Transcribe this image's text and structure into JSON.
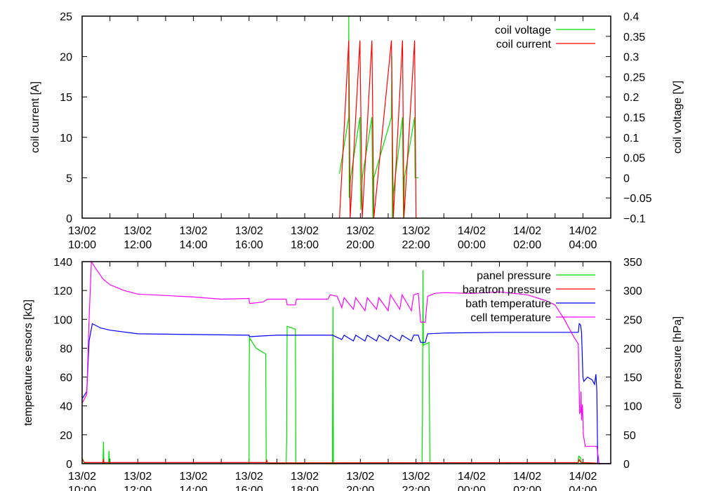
{
  "chart_data": [
    {
      "type": "line",
      "xlim": [
        "13/02 10:00",
        "14/02 05:00"
      ],
      "x_tick_labels": [
        [
          "13/02",
          "10:00"
        ],
        [
          "13/02",
          "12:00"
        ],
        [
          "13/02",
          "14:00"
        ],
        [
          "13/02",
          "16:00"
        ],
        [
          "13/02",
          "18:00"
        ],
        [
          "13/02",
          "20:00"
        ],
        [
          "13/02",
          "22:00"
        ],
        [
          "14/02",
          "00:00"
        ],
        [
          "14/02",
          "02:00"
        ],
        [
          "14/02",
          "04:00"
        ]
      ],
      "ylabel": "coil current [A]",
      "ylim": [
        0,
        25
      ],
      "y_ticks": [
        0,
        5,
        10,
        15,
        20,
        25
      ],
      "y2label": "coil voltage [V]",
      "y2lim": [
        -0.1,
        0.4
      ],
      "y2_ticks": [
        "-0.1",
        "-0.05",
        "0",
        "0.05",
        "0.1",
        "0.15",
        "0.2",
        "0.25",
        "0.3",
        "0.35",
        "0.4"
      ],
      "legend": "top-right",
      "grid": false,
      "series": [
        {
          "name": "coil voltage",
          "axis": "y2",
          "color": "#00e000",
          "points": [
            [
              "13/02 19:15",
              0.01
            ],
            [
              "13/02 19:35",
              0.15
            ],
            [
              "13/02 19:35",
              0.4
            ],
            [
              "13/02 19:36",
              -0.05
            ],
            [
              "13/02 19:39",
              0.0
            ],
            [
              "13/02 19:59",
              0.15
            ],
            [
              "13/02 20:01",
              -0.08
            ],
            [
              "13/02 20:04",
              0.0
            ],
            [
              "13/02 20:25",
              0.15
            ],
            [
              "13/02 20:27",
              -0.1
            ],
            [
              "13/02 20:29",
              0.0
            ],
            [
              "13/02 21:07",
              0.15
            ],
            [
              "13/02 21:08",
              0.3
            ],
            [
              "13/02 21:09",
              -0.1
            ],
            [
              "13/02 21:11",
              -0.04
            ],
            [
              "13/02 21:31",
              0.15
            ],
            [
              "13/02 21:33",
              -0.1
            ],
            [
              "13/02 21:35",
              0.0
            ],
            [
              "13/02 21:57",
              0.15
            ],
            [
              "13/02 21:58",
              0.0
            ],
            [
              "13/02 22:05",
              0.0
            ]
          ]
        },
        {
          "name": "coil current",
          "axis": "y",
          "color": "#ff0000",
          "points": [
            [
              "13/02 19:15",
              0
            ],
            [
              "13/02 19:35",
              22
            ],
            [
              "13/02 19:38",
              0
            ],
            [
              "13/02 19:59",
              22
            ],
            [
              "13/02 20:04",
              0
            ],
            [
              "13/02 20:25",
              22
            ],
            [
              "13/02 20:29",
              0
            ],
            [
              "13/02 21:07",
              22
            ],
            [
              "13/02 21:11",
              0
            ],
            [
              "13/02 21:31",
              22
            ],
            [
              "13/02 21:34",
              0
            ],
            [
              "13/02 21:57",
              22
            ],
            [
              "13/02 22:00",
              0
            ],
            [
              "13/02 22:05",
              0
            ]
          ]
        }
      ]
    },
    {
      "type": "line",
      "xlim": [
        "13/02 10:00",
        "14/02 05:00"
      ],
      "x_tick_labels": [
        [
          "13/02",
          "10:00"
        ],
        [
          "13/02",
          "12:00"
        ],
        [
          "13/02",
          "14:00"
        ],
        [
          "13/02",
          "16:00"
        ],
        [
          "13/02",
          "18:00"
        ],
        [
          "13/02",
          "20:00"
        ],
        [
          "13/02",
          "22:00"
        ],
        [
          "14/02",
          "00:00"
        ],
        [
          "14/02",
          "02:00"
        ],
        [
          "14/02",
          "04:00"
        ]
      ],
      "ylabel": "temperature sensors [kΩ]",
      "ylim": [
        0,
        140
      ],
      "y_ticks": [
        0,
        20,
        40,
        60,
        80,
        100,
        120,
        140
      ],
      "y2label": "cell pressure [hPa]",
      "y2lim": [
        0,
        350
      ],
      "y2_ticks": [
        "0",
        "50",
        "100",
        "150",
        "200",
        "250",
        "300",
        "350"
      ],
      "legend": "top-right",
      "grid": false,
      "series": [
        {
          "name": "panel pressure",
          "axis": "y2",
          "color": "#00e000",
          "points": [
            [
              "13/02 10:00",
              10
            ],
            [
              "13/02 10:05",
              0
            ],
            [
              "13/02 10:45",
              0
            ],
            [
              "13/02 10:46",
              38
            ],
            [
              "13/02 10:47",
              0
            ],
            [
              "13/02 10:57",
              0
            ],
            [
              "13/02 10:58",
              22
            ],
            [
              "13/02 10:59",
              0
            ],
            [
              "13/02 16:00",
              0
            ],
            [
              "13/02 16:00",
              128
            ],
            [
              "13/02 16:01",
              218
            ],
            [
              "13/02 16:15",
              200
            ],
            [
              "13/02 16:36",
              190
            ],
            [
              "13/02 16:37",
              0
            ],
            [
              "13/02 17:20",
              0
            ],
            [
              "13/02 17:21",
              35
            ],
            [
              "13/02 17:22",
              238
            ],
            [
              "13/02 17:40",
              233
            ],
            [
              "13/02 17:41",
              0
            ],
            [
              "13/02 19:00",
              0
            ],
            [
              "13/02 19:00",
              60
            ],
            [
              "13/02 19:01",
              272
            ],
            [
              "13/02 19:02",
              0
            ],
            [
              "13/02 22:13",
              0
            ],
            [
              "13/02 22:14",
              78
            ],
            [
              "13/02 22:15",
              335
            ],
            [
              "13/02 22:16",
              205
            ],
            [
              "13/02 22:28",
              210
            ],
            [
              "13/02 22:30",
              0
            ],
            [
              "14/02 03:49",
              0
            ],
            [
              "14/02 03:51",
              13
            ],
            [
              "14/02 03:55",
              10
            ],
            [
              "14/02 03:57",
              0
            ],
            [
              "14/02 05:00",
              0
            ]
          ]
        },
        {
          "name": "baratron pressure",
          "axis": "y2",
          "color": "#ff0000",
          "points": [
            [
              "13/02 10:00",
              8
            ],
            [
              "13/02 10:05",
              2
            ],
            [
              "13/02 10:45",
              2
            ],
            [
              "13/02 10:46",
              8
            ],
            [
              "13/02 10:47",
              2
            ],
            [
              "13/02 16:37",
              2
            ],
            [
              "13/02 16:38",
              6
            ],
            [
              "13/02 16:40",
              1.5
            ],
            [
              "14/02 03:50",
              2
            ],
            [
              "14/02 03:52",
              7
            ],
            [
              "14/02 03:56",
              2
            ],
            [
              "14/02 04:30",
              1
            ],
            [
              "14/02 04:35",
              0
            ],
            [
              "14/02 05:00",
              0
            ]
          ]
        },
        {
          "name": "bath temperature",
          "axis": "y",
          "color": "#0000ff",
          "points": [
            [
              "13/02 10:00",
              45
            ],
            [
              "13/02 10:10",
              50
            ],
            [
              "13/02 10:15",
              85
            ],
            [
              "13/02 10:22",
              97
            ],
            [
              "13/02 10:40",
              94
            ],
            [
              "13/02 11:00",
              92.5
            ],
            [
              "13/02 12:00",
              90
            ],
            [
              "13/02 14:00",
              89.5
            ],
            [
              "13/02 16:00",
              89
            ],
            [
              "13/02 16:01",
              88
            ],
            [
              "13/02 16:30",
              88.5
            ],
            [
              "13/02 17:00",
              89
            ],
            [
              "13/02 19:00",
              89
            ],
            [
              "13/02 19:20",
              86
            ],
            [
              "13/02 19:25",
              89
            ],
            [
              "13/02 19:45",
              85
            ],
            [
              "13/02 19:50",
              89
            ],
            [
              "13/02 20:10",
              85
            ],
            [
              "13/02 20:15",
              89
            ],
            [
              "13/02 20:35",
              85
            ],
            [
              "13/02 20:40",
              89
            ],
            [
              "13/02 21:00",
              85
            ],
            [
              "13/02 21:05",
              89
            ],
            [
              "13/02 21:25",
              85
            ],
            [
              "13/02 21:30",
              89
            ],
            [
              "13/02 21:50",
              85
            ],
            [
              "13/02 21:55",
              89
            ],
            [
              "13/02 22:05",
              89
            ],
            [
              "13/02 22:10",
              84
            ],
            [
              "13/02 22:20",
              84
            ],
            [
              "13/02 22:25",
              90
            ],
            [
              "13/02 23:00",
              90.5
            ],
            [
              "14/02 01:00",
              91
            ],
            [
              "14/02 03:00",
              91
            ],
            [
              "14/02 03:50",
              91
            ],
            [
              "14/02 03:52",
              97
            ],
            [
              "14/02 03:55",
              96
            ],
            [
              "14/02 03:57",
              91
            ],
            [
              "14/02 04:00",
              60
            ],
            [
              "14/02 04:02",
              57
            ],
            [
              "14/02 04:10",
              60
            ],
            [
              "14/02 04:20",
              58
            ],
            [
              "14/02 04:25",
              55
            ],
            [
              "14/02 04:28",
              62
            ],
            [
              "14/02 04:30",
              50
            ],
            [
              "14/02 04:32",
              0
            ],
            [
              "14/02 05:00",
              0
            ]
          ]
        },
        {
          "name": "cell temperature",
          "axis": "y",
          "color": "#ff00ff",
          "points": [
            [
              "13/02 10:00",
              42
            ],
            [
              "13/02 10:10",
              48
            ],
            [
              "13/02 10:15",
              100
            ],
            [
              "13/02 10:20",
              140
            ],
            [
              "13/02 10:30",
              135
            ],
            [
              "13/02 10:45",
              128
            ],
            [
              "13/02 11:00",
              124
            ],
            [
              "13/02 11:30",
              120
            ],
            [
              "13/02 12:00",
              117.5
            ],
            [
              "13/02 13:00",
              116.5
            ],
            [
              "13/02 14:00",
              115.5
            ],
            [
              "13/02 15:00",
              114
            ],
            [
              "13/02 16:00",
              114.5
            ],
            [
              "13/02 16:01",
              111
            ],
            [
              "13/02 16:30",
              112
            ],
            [
              "13/02 16:40",
              114
            ],
            [
              "13/02 17:20",
              114
            ],
            [
              "13/02 17:22",
              110
            ],
            [
              "13/02 17:40",
              110
            ],
            [
              "13/02 17:42",
              114
            ],
            [
              "13/02 18:50",
              114
            ],
            [
              "13/02 18:55",
              117
            ],
            [
              "13/02 19:10",
              116
            ],
            [
              "13/02 19:20",
              108
            ],
            [
              "13/02 19:25",
              115
            ],
            [
              "13/02 19:45",
              107
            ],
            [
              "13/02 19:50",
              115
            ],
            [
              "13/02 20:10",
              106
            ],
            [
              "13/02 20:15",
              115
            ],
            [
              "13/02 20:35",
              107
            ],
            [
              "13/02 20:40",
              115
            ],
            [
              "13/02 21:00",
              106
            ],
            [
              "13/02 21:05",
              117
            ],
            [
              "13/02 21:25",
              107
            ],
            [
              "13/02 21:30",
              117
            ],
            [
              "13/02 21:50",
              106
            ],
            [
              "13/02 21:55",
              117
            ],
            [
              "13/02 22:05",
              118
            ],
            [
              "13/02 22:10",
              98
            ],
            [
              "13/02 22:20",
              98
            ],
            [
              "13/02 22:25",
              116
            ],
            [
              "13/02 22:40",
              118
            ],
            [
              "13/02 23:00",
              118.5
            ],
            [
              "14/02 00:00",
              118
            ],
            [
              "14/02 01:00",
              119
            ],
            [
              "14/02 02:00",
              117
            ],
            [
              "14/02 02:40",
              113
            ],
            [
              "14/02 03:00",
              110
            ],
            [
              "14/02 03:20",
              100
            ],
            [
              "14/02 03:40",
              88
            ],
            [
              "14/02 03:50",
              83
            ],
            [
              "14/02 03:53",
              35
            ],
            [
              "14/02 03:55",
              36
            ],
            [
              "14/02 03:56",
              50
            ],
            [
              "14/02 03:57",
              30
            ],
            [
              "14/02 03:59",
              41
            ],
            [
              "14/02 04:01",
              20
            ],
            [
              "14/02 04:05",
              12
            ],
            [
              "14/02 04:30",
              12
            ],
            [
              "14/02 04:35",
              0
            ],
            [
              "14/02 05:00",
              0
            ]
          ]
        }
      ]
    }
  ]
}
